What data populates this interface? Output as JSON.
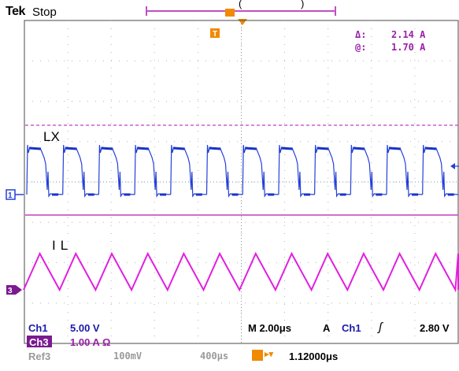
{
  "status": {
    "brand": "Tek",
    "state": "Stop"
  },
  "cursor_readout": {
    "delta_label": "Δ:",
    "delta_value": "2.14 A",
    "at_label": "@:",
    "at_value": "1.70 A"
  },
  "waveform_labels": {
    "lx": "LX",
    "il": "IL"
  },
  "markers": {
    "ch1": "1",
    "ch3": "3",
    "trigger": "T"
  },
  "settings": {
    "ch1_name": "Ch1",
    "ch1_scale": "5.00 V",
    "ch3_name": "Ch3",
    "ch3_scale": "1.00 A Ω",
    "ref3_name": "Ref3",
    "ref3_scale": "100mV",
    "ref3_time": "400μs",
    "timebase": "M 2.00μs",
    "trigger_mode": "A",
    "trigger_source": "Ch1",
    "trigger_level": "2.80 V",
    "trigger_position": "1.12000μs"
  },
  "colors": {
    "ch1": "#2440d8",
    "ch3": "#e21ee0",
    "cursor": "#c040c0",
    "trigger": "#f08a00",
    "grid": "#9aa0a6",
    "status_text": "#1a1aa8"
  }
}
